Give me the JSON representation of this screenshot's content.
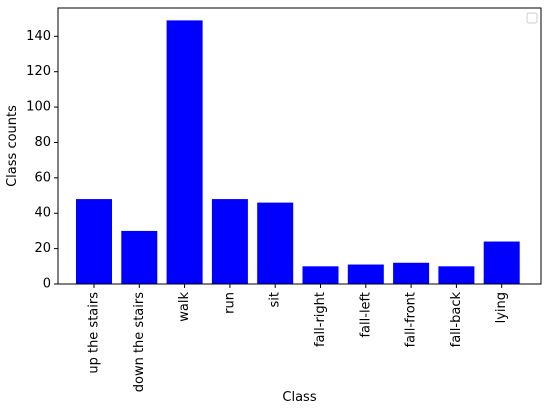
{
  "chart_data": {
    "type": "bar",
    "title": "",
    "xlabel": "Class",
    "ylabel": "Class counts",
    "categories": [
      "up the stairs",
      "down the stairs",
      "walk",
      "run",
      "sit",
      "fall-right",
      "fall-left",
      "fall-front",
      "fall-back",
      "lying"
    ],
    "values": [
      48,
      30,
      149,
      48,
      46,
      10,
      11,
      12,
      10,
      24
    ],
    "ylim": [
      0,
      156
    ],
    "yticks": [
      0,
      20,
      40,
      60,
      80,
      100,
      120,
      140
    ],
    "grid": false,
    "legend": "top-right (empty)",
    "bar_color": "#0000ff"
  }
}
